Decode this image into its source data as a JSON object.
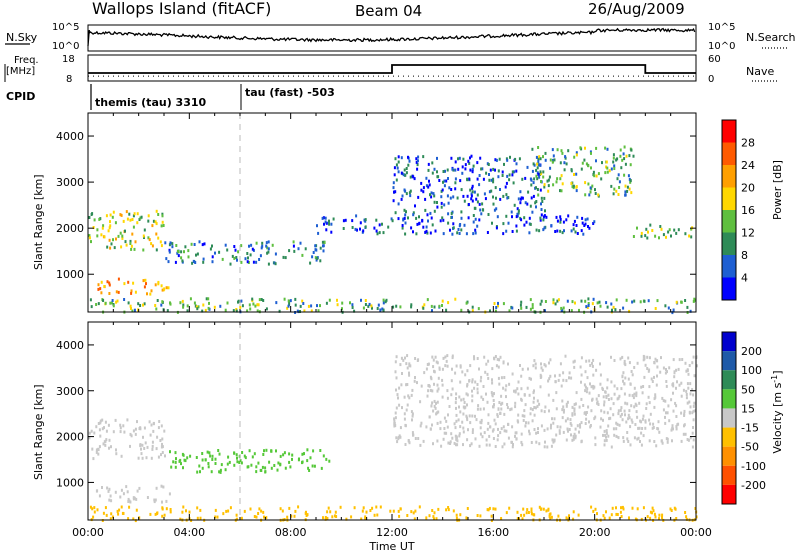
{
  "header": {
    "station": "Wallops Island (fitACF)",
    "beam": "Beam 04",
    "date": "26/Aug/2009"
  },
  "labels": {
    "nsky": "N.Sky",
    "nsearch": "N.Search",
    "freq_line1": "Freq.",
    "freq_line2": "[MHz]",
    "nave": "Nave",
    "cpid": "CPID",
    "cpid_mode1": "themis (tau) 3310",
    "cpid_mode2": "tau (fast) -503",
    "xlabel": "Time UT",
    "ylabel_power": "Slant Range [km]",
    "ylabel_velocity": "Slant Range [km]",
    "power_colorbar_label": "Power [dB]",
    "velocity_colorbar_label": "Velocity [m s",
    "velocity_colorbar_sup": "-1",
    "velocity_colorbar_close": "]"
  },
  "noise_panel": {
    "left_ticks": [
      "10^5",
      "10^0"
    ],
    "right_ticks": [
      "10^5",
      "10^0"
    ]
  },
  "freq_panel": {
    "left_ticks": [
      "18",
      "8"
    ],
    "right_ticks": [
      "60",
      "0"
    ],
    "freq_mhz": [
      [
        0.0,
        10.5
      ],
      [
        0.25,
        10.5
      ],
      [
        12.0,
        10.5
      ],
      [
        12.0,
        14.5
      ],
      [
        22.0,
        14.5
      ],
      [
        22.0,
        10.5
      ],
      [
        24.0,
        10.5
      ]
    ],
    "nave": [
      [
        0.0,
        8
      ],
      [
        24.0,
        8
      ]
    ]
  },
  "colors": {
    "power": [
      "#0000ff",
      "#1e5fd2",
      "#2e8b57",
      "#5fbf3f",
      "#ffd700",
      "#ff9f00",
      "#ff5a00",
      "#ff0000"
    ],
    "velocity": [
      "#0000cd",
      "#1e5aa8",
      "#2e8b57",
      "#55c838",
      "#c8c8c8",
      "#ffc000",
      "#ff9000",
      "#ff5000",
      "#ff0000"
    ]
  },
  "chart_data": [
    {
      "type": "heatmap",
      "title": "Power",
      "xlabel": "Time UT",
      "ylabel": "Slant Range [km]",
      "xlim": [
        0,
        24
      ],
      "ylim": [
        180,
        4500
      ],
      "x_ticks": [
        "00:00",
        "04:00",
        "08:00",
        "12:00",
        "16:00",
        "20:00",
        "00:00"
      ],
      "y_ticks": [
        1000,
        2000,
        3000,
        4000
      ],
      "colorbar": {
        "label": "Power [dB]",
        "ticks": [
          4,
          8,
          12,
          16,
          20,
          24,
          28
        ],
        "range": [
          0,
          30
        ]
      },
      "echo_regions": [
        {
          "t": [
            0.0,
            3.0
          ],
          "range_km": [
            1550,
            2400
          ],
          "value": 16
        },
        {
          "t": [
            0.3,
            3.2
          ],
          "range_km": [
            600,
            950
          ],
          "value": 22
        },
        {
          "t": [
            3.0,
            9.5
          ],
          "range_km": [
            1250,
            1750
          ],
          "value": 8
        },
        {
          "t": [
            0.0,
            24.0
          ],
          "range_km": [
            200,
            500
          ],
          "value": 12
        },
        {
          "t": [
            9.0,
            12.0
          ],
          "range_km": [
            1900,
            2300
          ],
          "value": 6
        },
        {
          "t": [
            12.0,
            18.0
          ],
          "range_km": [
            2200,
            3600
          ],
          "value": 6
        },
        {
          "t": [
            12.0,
            20.0
          ],
          "range_km": [
            1900,
            2300
          ],
          "value": 5
        },
        {
          "t": [
            17.5,
            21.5
          ],
          "range_km": [
            2700,
            3800
          ],
          "value": 12
        },
        {
          "t": [
            21.5,
            24.0
          ],
          "range_km": [
            1800,
            2100
          ],
          "value": 14
        }
      ]
    },
    {
      "type": "heatmap",
      "title": "Velocity",
      "xlabel": "Time UT",
      "ylabel": "Slant Range [km]",
      "xlim": [
        0,
        24
      ],
      "ylim": [
        180,
        4500
      ],
      "x_ticks": [
        "00:00",
        "04:00",
        "08:00",
        "12:00",
        "16:00",
        "20:00",
        "00:00"
      ],
      "y_ticks": [
        1000,
        2000,
        3000,
        4000
      ],
      "colorbar": {
        "label": "Velocity [m s-1]",
        "ticks": [
          200,
          100,
          50,
          15,
          -15,
          -50,
          -100,
          -200
        ]
      },
      "echo_regions": [
        {
          "t": [
            0.0,
            3.0
          ],
          "range_km": [
            1550,
            2400
          ],
          "value": 0
        },
        {
          "t": [
            0.3,
            3.2
          ],
          "range_km": [
            600,
            950
          ],
          "value": 0
        },
        {
          "t": [
            3.0,
            9.5
          ],
          "range_km": [
            1250,
            1750
          ],
          "value": 40
        },
        {
          "t": [
            0.0,
            24.0
          ],
          "range_km": [
            200,
            500
          ],
          "value": -40
        },
        {
          "t": [
            12.0,
            24.0
          ],
          "range_km": [
            1800,
            3800
          ],
          "value": 0
        }
      ]
    }
  ]
}
